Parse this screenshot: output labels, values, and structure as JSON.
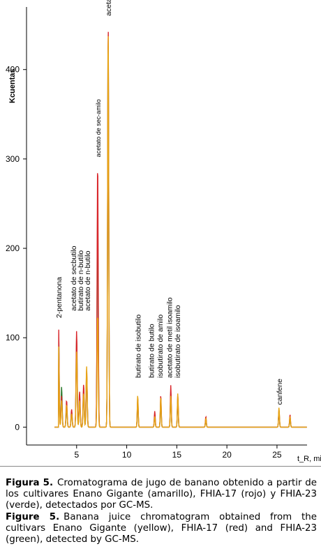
{
  "chart_data": {
    "type": "line",
    "ylabel": "Kcuentas",
    "xlabel": "t_R, min",
    "xlim": [
      0,
      28
    ],
    "ylim": [
      -20,
      470
    ],
    "x_ticks": [
      5,
      10,
      15,
      20,
      25
    ],
    "y_ticks": [
      0,
      100,
      200,
      300,
      400
    ],
    "grid": false,
    "legend": "none",
    "series": [
      {
        "color": "#e7a514",
        "baseline": 0,
        "peaks": [
          [
            3.2,
            95
          ],
          [
            3.5,
            30
          ],
          [
            4.0,
            25
          ],
          [
            4.5,
            15
          ],
          [
            5.0,
            85
          ],
          [
            5.3,
            30
          ],
          [
            5.7,
            38
          ],
          [
            6.0,
            68
          ],
          [
            7.1,
            128
          ],
          [
            8.15,
            450
          ],
          [
            11.1,
            36
          ],
          [
            12.8,
            12
          ],
          [
            13.4,
            34
          ],
          [
            14.4,
            35
          ],
          [
            15.1,
            38
          ],
          [
            17.9,
            10
          ],
          [
            25.2,
            22
          ],
          [
            26.3,
            12
          ]
        ]
      },
      {
        "color": "#d9262b",
        "baseline": 0,
        "peaks": [
          [
            3.2,
            115
          ],
          [
            3.5,
            35
          ],
          [
            4.0,
            30
          ],
          [
            4.5,
            20
          ],
          [
            5.0,
            108
          ],
          [
            5.3,
            40
          ],
          [
            5.7,
            48
          ],
          [
            6.0,
            65
          ],
          [
            7.1,
            297
          ],
          [
            8.15,
            455
          ],
          [
            11.1,
            34
          ],
          [
            12.8,
            18
          ],
          [
            13.4,
            36
          ],
          [
            14.4,
            47
          ],
          [
            15.1,
            36
          ],
          [
            17.9,
            12
          ],
          [
            25.2,
            20
          ],
          [
            26.3,
            14
          ]
        ]
      },
      {
        "color": "#2e7d32",
        "baseline": 0,
        "peaks": [
          [
            3.2,
            110
          ],
          [
            3.5,
            45
          ],
          [
            4.0,
            22
          ],
          [
            4.5,
            18
          ],
          [
            5.0,
            102
          ],
          [
            5.3,
            35
          ],
          [
            5.7,
            42
          ],
          [
            6.0,
            60
          ],
          [
            7.1,
            250
          ],
          [
            8.15,
            440
          ],
          [
            11.1,
            30
          ],
          [
            12.8,
            15
          ],
          [
            13.4,
            30
          ],
          [
            14.4,
            40
          ],
          [
            15.1,
            32
          ],
          [
            17.9,
            9
          ],
          [
            25.2,
            18
          ],
          [
            26.3,
            10
          ]
        ]
      }
    ],
    "annotations": [
      {
        "text": "2-pentanona",
        "x": 3.2,
        "y": 122
      },
      {
        "text": "acetato de secbutilo",
        "x": 4.65,
        "y": 130
      },
      {
        "text": "butirato de n-butilo",
        "x": 5.35,
        "y": 130
      },
      {
        "text": "acetato de n-butilo",
        "x": 6.05,
        "y": 130
      },
      {
        "text": "acetato de sec-amilo",
        "x": 7.1,
        "y": 302
      },
      {
        "text": "acetato de isoamilo",
        "x": 8.15,
        "y": 460
      },
      {
        "text": "butirato de isobutilo",
        "x": 11.1,
        "y": 55
      },
      {
        "text": "butirato de butilo",
        "x": 12.45,
        "y": 55
      },
      {
        "text": "isobutirato de amilo",
        "x": 13.3,
        "y": 55
      },
      {
        "text": "acetato de metil isoamilo",
        "x": 14.25,
        "y": 55
      },
      {
        "text": "isobutirato de isoamilo",
        "x": 15.05,
        "y": 55
      },
      {
        "text": "canfene",
        "x": 25.2,
        "y": 25
      }
    ]
  },
  "captions": {
    "es_label": "Figura 5.",
    "es_text": "Cromatograma de jugo de banano obtenido a partir de los cultivares Enano Gigante (amarillo), FHIA-17 (rojo) y FHIA-23 (verde), detectados por GC-MS.",
    "en_label": "Figure 5.",
    "en_text": "Banana juice chromatogram obtained from the cultivars Enano Gigante (yellow), FHIA-17 (red) and FHIA-23 (green), detected by GC-MS."
  }
}
